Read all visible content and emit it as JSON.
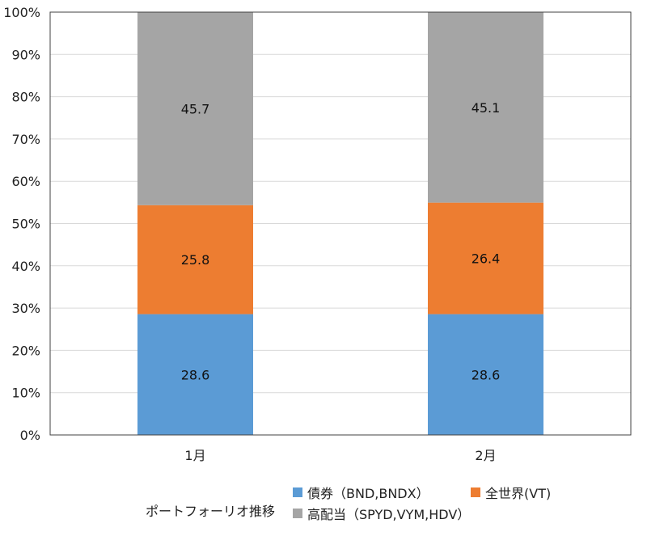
{
  "chart_data": {
    "type": "bar",
    "stacked": true,
    "normalized_percent": true,
    "categories": [
      "1月",
      "2月"
    ],
    "series": [
      {
        "name": "債券（BND,BNDX）",
        "values": [
          28.6,
          28.6
        ],
        "color": "#5B9BD5"
      },
      {
        "name": "全世界(VT)",
        "values": [
          25.8,
          26.4
        ],
        "color": "#ED7D31"
      },
      {
        "name": "高配当（SPYD,VYM,HDV）",
        "values": [
          45.7,
          45.1
        ],
        "color": "#A5A5A5"
      }
    ],
    "yticks": [
      "0%",
      "10%",
      "20%",
      "30%",
      "40%",
      "50%",
      "60%",
      "70%",
      "80%",
      "90%",
      "100%"
    ],
    "ylim": [
      0,
      100
    ],
    "legend_title": "ポートフォーリオ推移",
    "legend_position": "bottom",
    "grid": true
  }
}
